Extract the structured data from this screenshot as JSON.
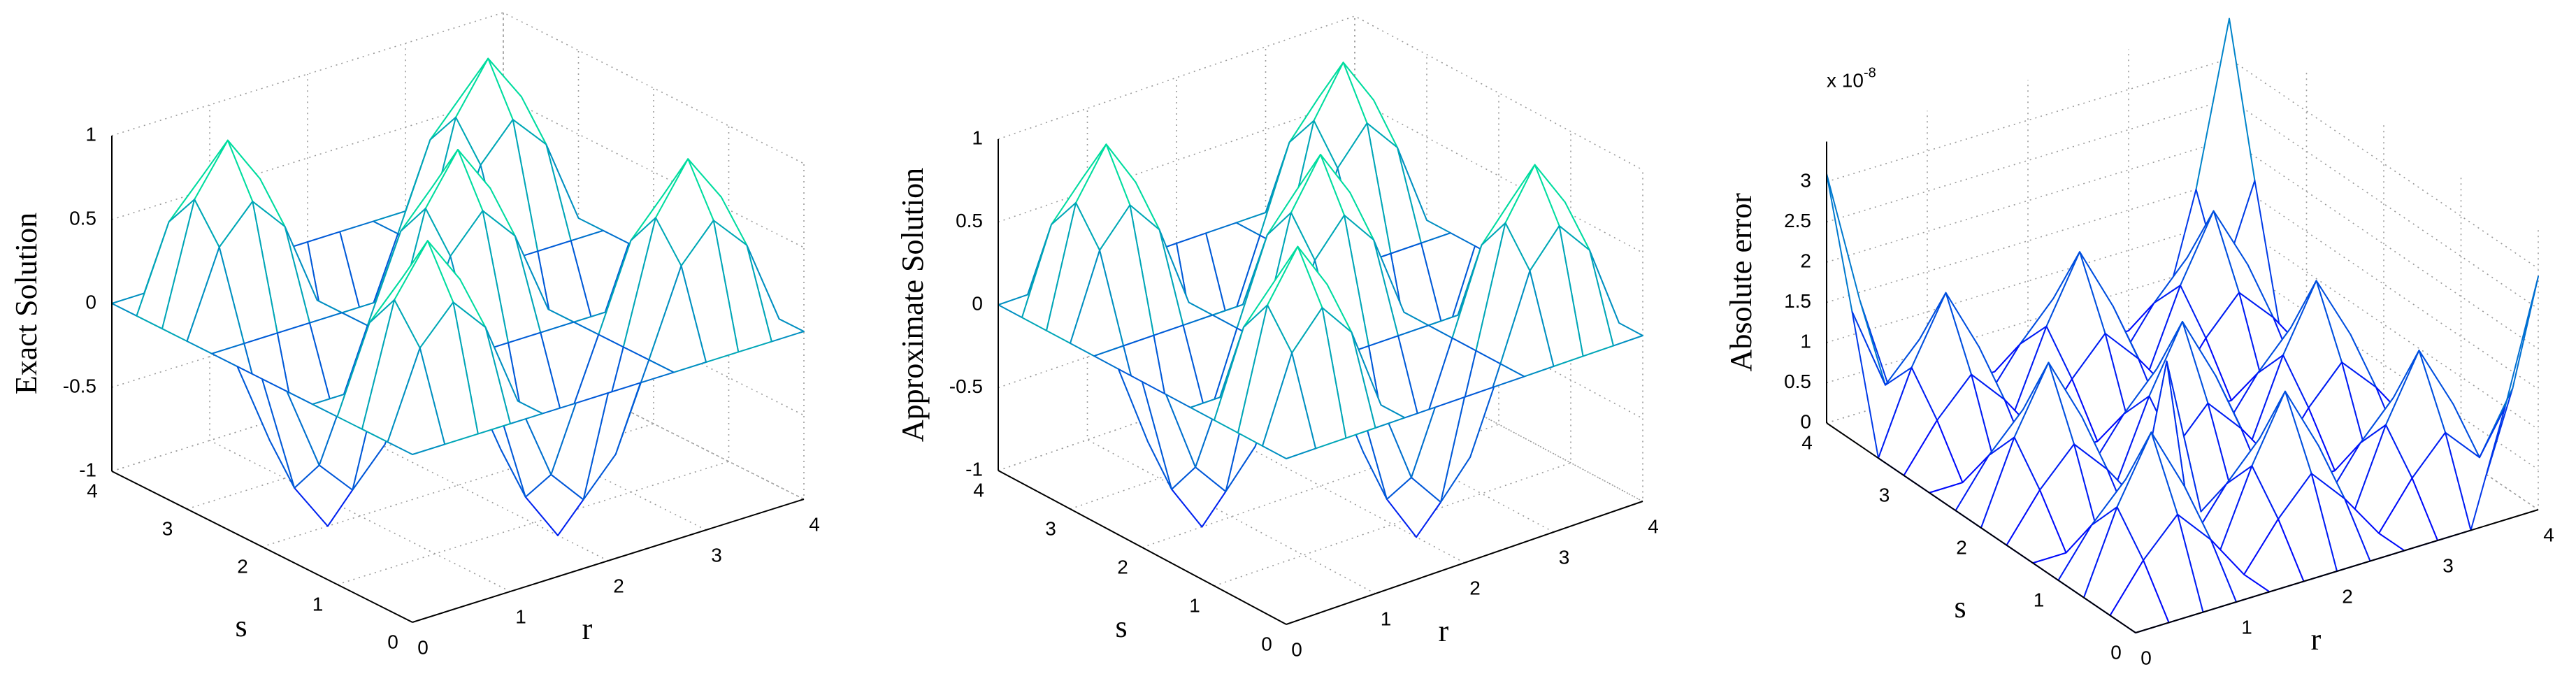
{
  "chart_data": [
    {
      "type": "surface",
      "xlabel": "r",
      "ylabel": "s",
      "zlabel": "Exact Solution",
      "x": [
        0,
        0.33,
        0.67,
        1,
        1.33,
        1.67,
        2,
        2.33,
        2.67,
        3,
        3.33,
        3.67,
        4
      ],
      "y": [
        0,
        0.33,
        0.67,
        1,
        1.33,
        1.67,
        2,
        2.33,
        2.67,
        3,
        3.33,
        3.67,
        4
      ],
      "z": [
        [
          0,
          0,
          0,
          0,
          0,
          0,
          0,
          0,
          0,
          0,
          0,
          0,
          0
        ],
        [
          0,
          0.5,
          0.71,
          0.5,
          0,
          -0.5,
          -0.71,
          -0.5,
          0,
          0.5,
          0.71,
          0.5,
          0
        ],
        [
          0,
          0.71,
          1,
          0.71,
          0,
          -0.71,
          -1,
          -0.71,
          0,
          0.71,
          1,
          0.71,
          0
        ],
        [
          0,
          0.5,
          0.71,
          0.5,
          0,
          -0.5,
          -0.71,
          -0.5,
          0,
          0.5,
          0.71,
          0.5,
          0
        ],
        [
          0,
          0,
          0,
          0,
          0,
          0,
          0,
          0,
          0,
          0,
          0,
          0,
          0
        ],
        [
          0,
          -0.5,
          -0.71,
          -0.5,
          0,
          0.5,
          0.71,
          0.5,
          0,
          -0.5,
          -0.71,
          -0.5,
          0
        ],
        [
          0,
          -0.71,
          -1,
          -0.71,
          0,
          0.71,
          1,
          0.71,
          0,
          -0.71,
          -1,
          -0.71,
          0
        ],
        [
          0,
          -0.5,
          -0.71,
          -0.5,
          0,
          0.5,
          0.71,
          0.5,
          0,
          -0.5,
          -0.71,
          -0.5,
          0
        ],
        [
          0,
          0,
          0,
          0,
          0,
          0,
          0,
          0,
          0,
          0,
          0,
          0,
          0
        ],
        [
          0,
          0.5,
          0.71,
          0.5,
          0,
          -0.5,
          -0.71,
          -0.5,
          0,
          0.5,
          0.71,
          0.5,
          0
        ],
        [
          0,
          0.71,
          1,
          0.71,
          0,
          -0.71,
          -1,
          -0.71,
          0,
          0.71,
          1,
          0.71,
          0
        ],
        [
          0,
          0.5,
          0.71,
          0.5,
          0,
          -0.5,
          -0.71,
          -0.5,
          0,
          0.5,
          0.71,
          0.5,
          0
        ],
        [
          0,
          0,
          0,
          0,
          0,
          0,
          0,
          0,
          0,
          0,
          0,
          0,
          0
        ]
      ],
      "xlim": [
        0,
        4
      ],
      "ylim": [
        0,
        4
      ],
      "zlim": [
        -1,
        1
      ],
      "xticks": [
        0,
        1,
        2,
        3,
        4
      ],
      "yticks": [
        0,
        1,
        2,
        3,
        4
      ],
      "zticks": [
        -1,
        -0.5,
        0,
        0.5,
        1
      ],
      "colormap": [
        "#0000ff",
        "#00ff90"
      ],
      "grid": true
    },
    {
      "type": "surface",
      "xlabel": "r",
      "ylabel": "s",
      "zlabel": "Approximate Solution",
      "x": [
        0,
        0.33,
        0.67,
        1,
        1.33,
        1.67,
        2,
        2.33,
        2.67,
        3,
        3.33,
        3.67,
        4
      ],
      "y": [
        0,
        0.33,
        0.67,
        1,
        1.33,
        1.67,
        2,
        2.33,
        2.67,
        3,
        3.33,
        3.67,
        4
      ],
      "z": [
        [
          0,
          0,
          0,
          0,
          0,
          0,
          0,
          0,
          0,
          0,
          0,
          0,
          0
        ],
        [
          0,
          0.5,
          0.71,
          0.5,
          0,
          -0.5,
          -0.71,
          -0.5,
          0,
          0.5,
          0.71,
          0.5,
          0
        ],
        [
          0,
          0.71,
          1,
          0.71,
          0,
          -0.71,
          -1,
          -0.71,
          0,
          0.71,
          1,
          0.71,
          0
        ],
        [
          0,
          0.5,
          0.71,
          0.5,
          0,
          -0.5,
          -0.71,
          -0.5,
          0,
          0.5,
          0.71,
          0.5,
          0
        ],
        [
          0,
          0,
          0,
          0,
          0,
          0,
          0,
          0,
          0,
          0,
          0,
          0,
          0
        ],
        [
          0,
          -0.5,
          -0.71,
          -0.5,
          0,
          0.5,
          0.71,
          0.5,
          0,
          -0.5,
          -0.71,
          -0.5,
          0
        ],
        [
          0,
          -0.71,
          -1,
          -0.71,
          0,
          0.71,
          1,
          0.71,
          0,
          -0.71,
          -1,
          -0.71,
          0
        ],
        [
          0,
          -0.5,
          -0.71,
          -0.5,
          0,
          0.5,
          0.71,
          0.5,
          0,
          -0.5,
          -0.71,
          -0.5,
          0
        ],
        [
          0,
          0,
          0,
          0,
          0,
          0,
          0,
          0,
          0,
          0,
          0,
          0,
          0
        ],
        [
          0,
          0.5,
          0.71,
          0.5,
          0,
          -0.5,
          -0.71,
          -0.5,
          0,
          0.5,
          0.71,
          0.5,
          0
        ],
        [
          0,
          0.71,
          1,
          0.71,
          0,
          -0.71,
          -1,
          -0.71,
          0,
          0.71,
          1,
          0.71,
          0
        ],
        [
          0,
          0.5,
          0.71,
          0.5,
          0,
          -0.5,
          -0.71,
          -0.5,
          0,
          0.5,
          0.71,
          0.5,
          0
        ],
        [
          0,
          0,
          0,
          0,
          0,
          0,
          0,
          0,
          0,
          0,
          0,
          0,
          0
        ]
      ],
      "xlim": [
        0,
        4
      ],
      "ylim": [
        0,
        4
      ],
      "zlim": [
        -1,
        1
      ],
      "xticks": [
        0,
        1,
        2,
        3,
        4
      ],
      "yticks": [
        0,
        1,
        2,
        3,
        4
      ],
      "zticks": [
        -1,
        -0.5,
        0,
        0.5,
        1
      ],
      "colormap": [
        "#0000ff",
        "#00ff90"
      ],
      "grid": true
    },
    {
      "type": "surface",
      "xlabel": "r",
      "ylabel": "s",
      "zlabel": "Absolute error",
      "zmultiplier": {
        "base": "x 10",
        "exponent": "-8"
      },
      "x": [
        0,
        0.33,
        0.67,
        1,
        1.33,
        1.67,
        2,
        2.33,
        2.67,
        3,
        3.33,
        3.67,
        4
      ],
      "y": [
        0,
        0.33,
        0.67,
        1,
        1.33,
        1.67,
        2,
        2.33,
        2.67,
        3,
        3.33,
        3.67,
        4
      ],
      "z": [
        [
          0,
          0,
          0,
          0,
          0,
          0,
          0,
          0,
          0,
          0,
          0,
          1.4,
          2.9
        ],
        [
          0,
          0.56,
          1.0,
          0.56,
          0,
          0.56,
          1.0,
          0.56,
          0,
          0.56,
          1.0,
          0.56,
          1.3
        ],
        [
          0,
          1.0,
          1.8,
          1.0,
          0,
          1.0,
          1.8,
          1.0,
          0,
          1.0,
          1.8,
          1.0,
          0
        ],
        [
          0,
          0.56,
          1.0,
          0.56,
          0,
          0.56,
          1.0,
          0.56,
          0,
          0.56,
          1.0,
          0.56,
          0
        ],
        [
          0,
          0,
          0,
          0,
          2.0,
          0,
          0,
          0,
          0,
          0,
          0,
          0,
          0
        ],
        [
          0,
          0.56,
          1.0,
          0.56,
          0,
          0.56,
          1.0,
          0.56,
          0,
          0.56,
          1.0,
          0.56,
          0
        ],
        [
          0,
          1.0,
          1.8,
          1.0,
          0,
          1.0,
          1.8,
          1.0,
          0,
          1.0,
          1.8,
          1.0,
          0
        ],
        [
          0,
          0.56,
          1.0,
          0.56,
          0,
          0.56,
          1.0,
          0.56,
          0,
          0.56,
          1.0,
          0.56,
          0
        ],
        [
          0,
          0,
          0,
          0,
          0,
          0,
          0,
          0,
          0,
          0,
          0,
          0,
          0
        ],
        [
          0,
          0.56,
          1.0,
          0.56,
          0,
          0.56,
          1.0,
          0.56,
          0,
          0.56,
          1.0,
          0.56,
          0
        ],
        [
          0,
          1.0,
          1.8,
          1.0,
          0,
          1.0,
          1.8,
          1.0,
          0,
          1.0,
          1.8,
          1.0,
          0
        ],
        [
          1.6,
          0.56,
          1.0,
          0.56,
          0,
          0.56,
          1.0,
          0.56,
          0,
          0.56,
          1.0,
          0.56,
          1.7
        ],
        [
          3.1,
          1.4,
          0,
          0,
          0,
          0,
          0,
          0,
          0,
          0,
          0,
          1.5,
          3.5
        ]
      ],
      "xlim": [
        0,
        4
      ],
      "ylim": [
        0,
        4
      ],
      "zlim": [
        0,
        3.5
      ],
      "xticks": [
        0,
        1,
        2,
        3,
        4
      ],
      "yticks": [
        0,
        1,
        2,
        3,
        4
      ],
      "zticks": [
        0,
        0.5,
        1,
        1.5,
        2,
        2.5,
        3
      ],
      "colormap": [
        "#0000ff",
        "#00ff99"
      ],
      "grid": true
    }
  ]
}
